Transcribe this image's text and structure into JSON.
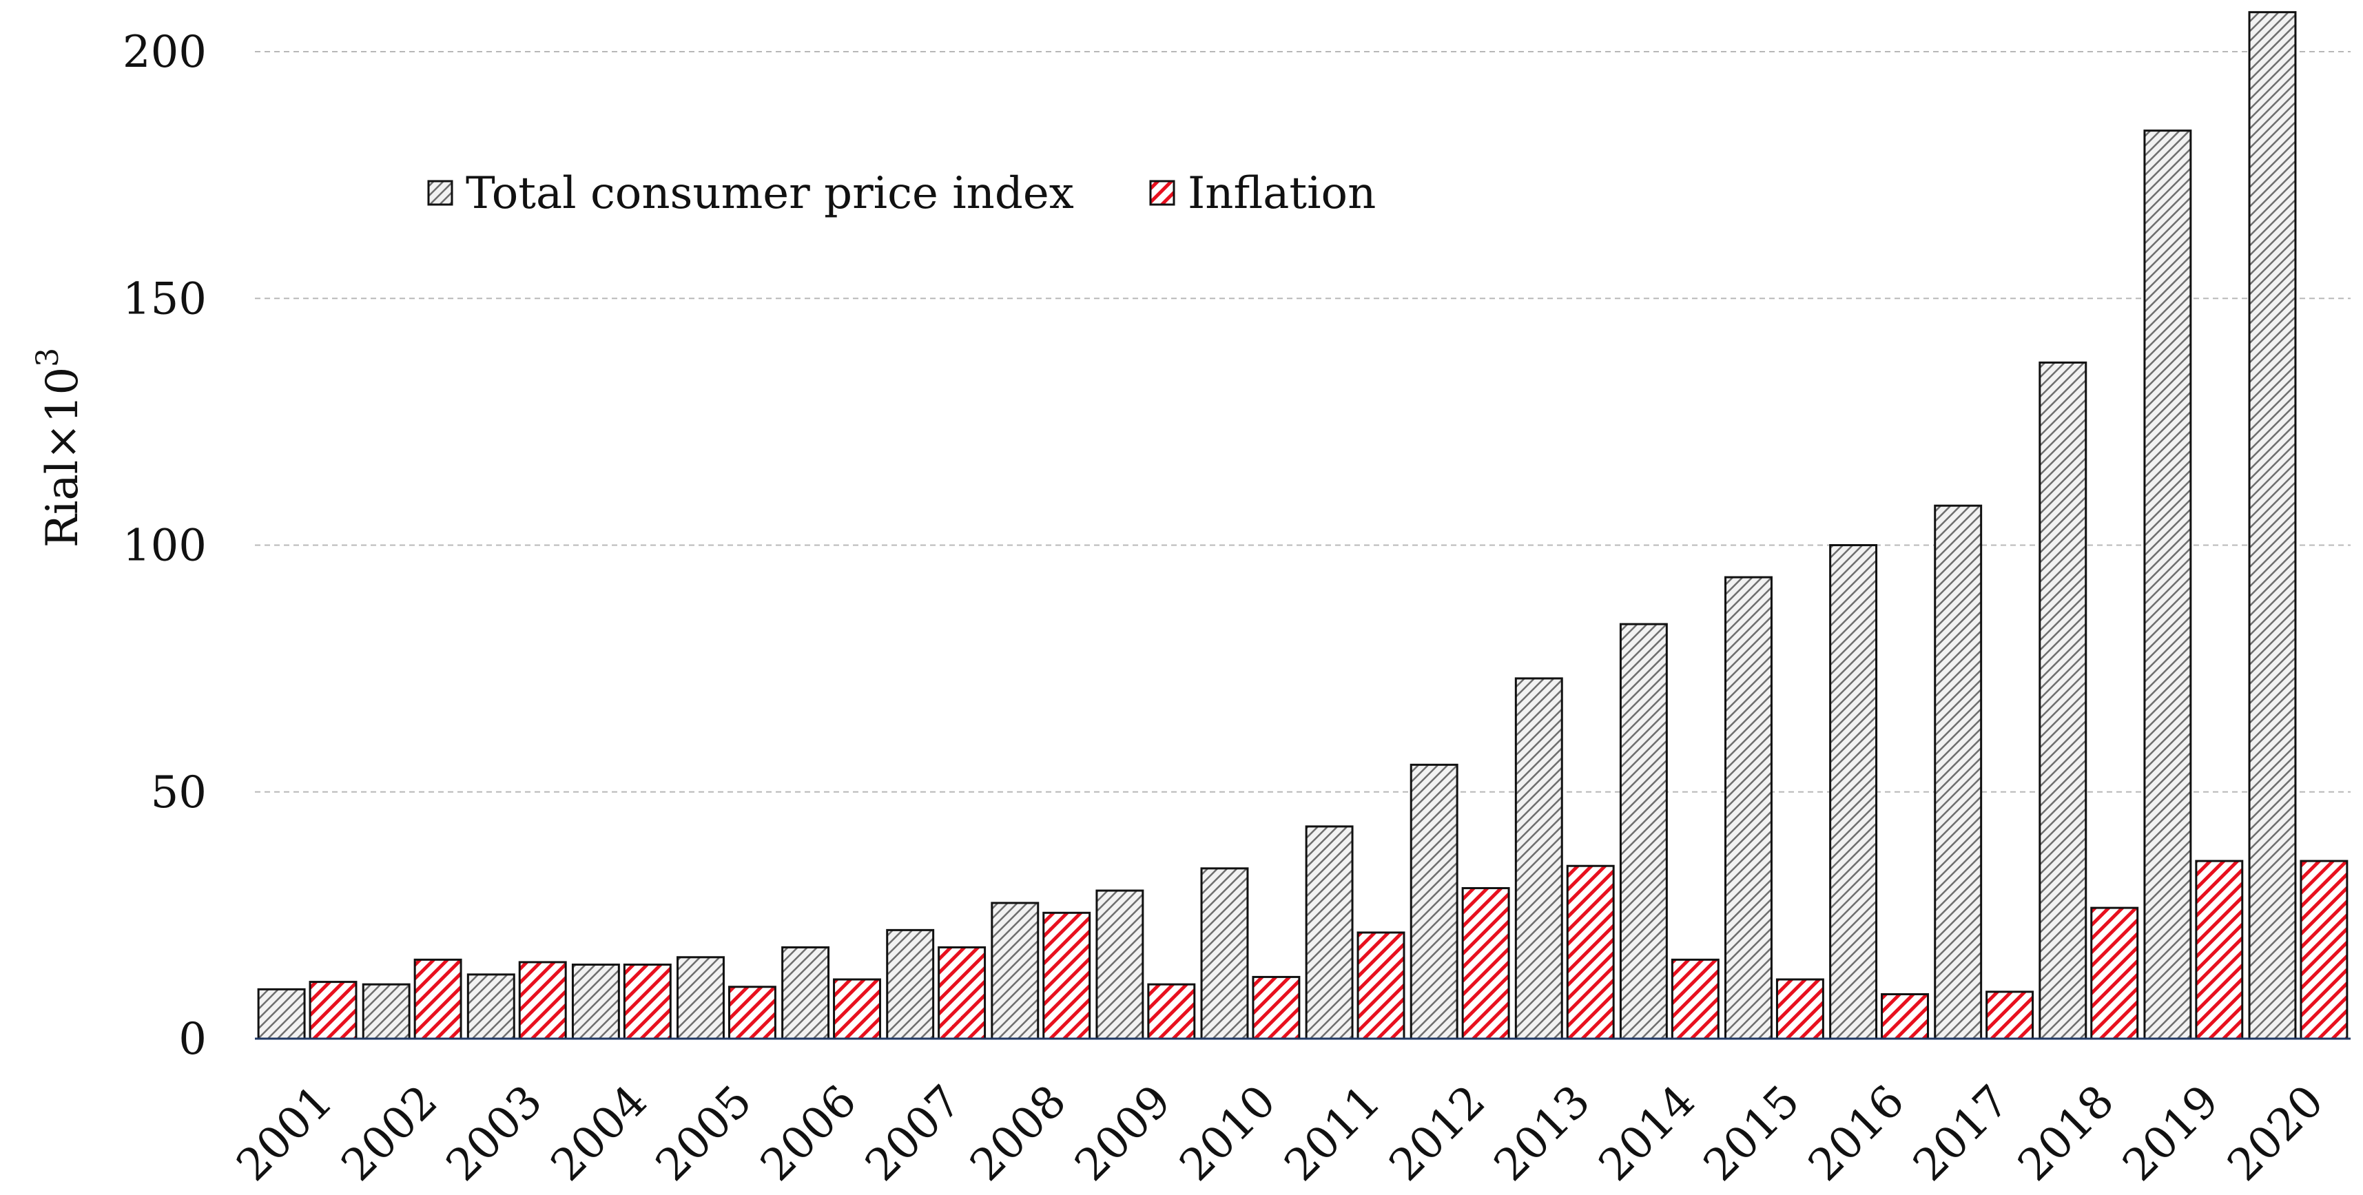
{
  "chart_data": {
    "type": "bar",
    "title": "",
    "xlabel": "",
    "ylabel": "Rial×10",
    "ylabel_superscript": "3",
    "ylim": [
      0,
      200
    ],
    "yticks": [
      0,
      50,
      100,
      150,
      200
    ],
    "grid": true,
    "legend_position": "top-left",
    "categories": [
      "2001",
      "2002",
      "2003",
      "2004",
      "2005",
      "2006",
      "2007",
      "2008",
      "2009",
      "2010",
      "2011",
      "2012",
      "2013",
      "2014",
      "2015",
      "2016",
      "2017",
      "2018",
      "2019",
      "2020"
    ],
    "series": [
      {
        "name": "Total consumer price index",
        "pattern": "gray-hatch",
        "color": "#8c8c8c",
        "values": [
          10,
          11,
          13,
          15,
          16.5,
          18.5,
          22,
          27.5,
          30,
          34.5,
          43,
          55.5,
          73,
          84,
          93.5,
          100,
          108,
          137,
          184,
          208
        ]
      },
      {
        "name": "Inflation",
        "pattern": "red-hatch",
        "color": "#e8101e",
        "values": [
          11.5,
          16,
          15.5,
          15,
          10.5,
          12,
          18.5,
          25.5,
          11,
          12.5,
          21.5,
          30.5,
          35,
          16,
          12,
          9,
          9.5,
          26.5,
          36,
          36
        ]
      }
    ]
  }
}
